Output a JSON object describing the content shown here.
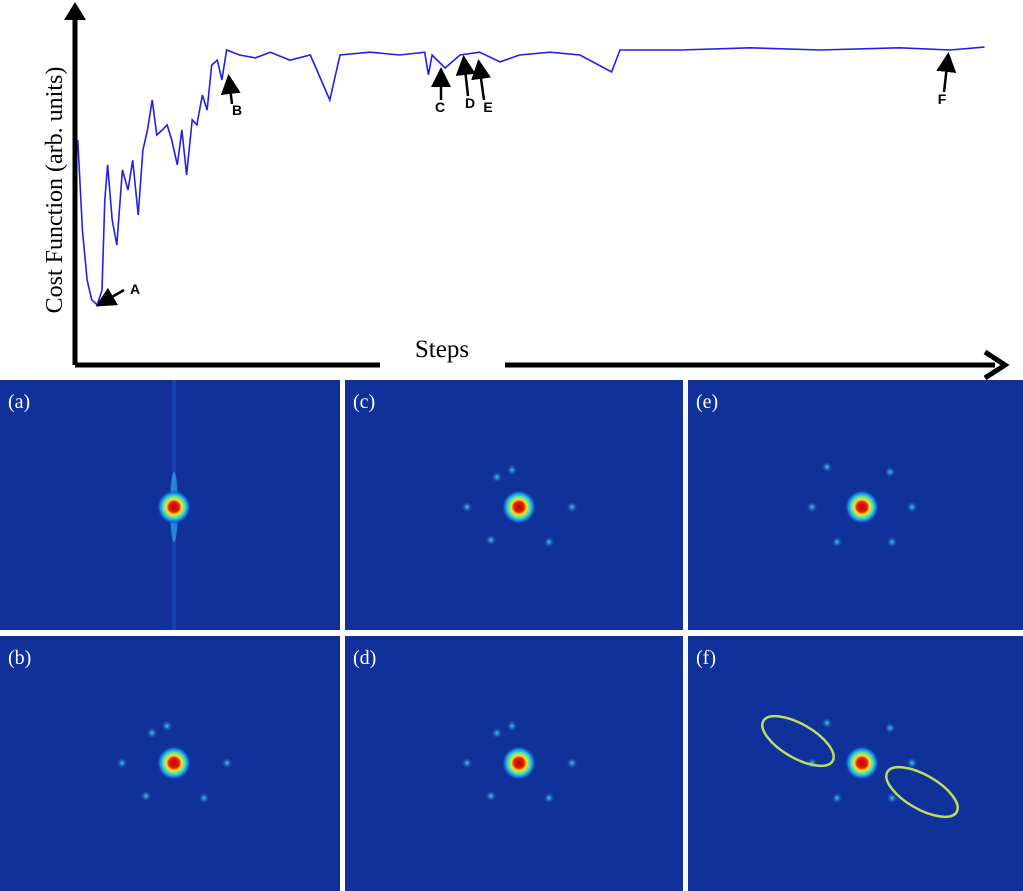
{
  "chart_data": {
    "type": "line",
    "xlabel": "Steps",
    "ylabel": "Cost Function (arb. units)",
    "xlim": [
      0,
      100
    ],
    "ylim": [
      0,
      100
    ],
    "series": [
      {
        "color": "#2020e8",
        "x": [
          0.3,
          0.8,
          1.3,
          1.8,
          2.4,
          2.9,
          3.2,
          3.5,
          4.0,
          4.5,
          5.1,
          5.7,
          6.2,
          6.8,
          7.3,
          7.8,
          8.3,
          8.8,
          9.4,
          9.9,
          10.4,
          11.0,
          11.5,
          12.0,
          12.6,
          13.1,
          13.7,
          14.2,
          14.7,
          15.3,
          15.8,
          16.3,
          17.7,
          19.4,
          21.0,
          23.1,
          25.3,
          27.4,
          28.5,
          31.7,
          34.9,
          37.6,
          38.0,
          38.4,
          39.8,
          41.4,
          43.5,
          45.7,
          47.8,
          51.1,
          54.3,
          57.7,
          58.6,
          65.1,
          72.6,
          80.1,
          88.7,
          94.1,
          97.8
        ],
        "values": [
          62.5,
          37.5,
          23.6,
          18.1,
          16.7,
          20.8,
          45.8,
          55.6,
          40.3,
          33.3,
          54.2,
          48.6,
          56.9,
          41.7,
          59.7,
          65.3,
          73.6,
          63.9,
          65.3,
          66.7,
          62.5,
          55.6,
          65.3,
          52.8,
          68.1,
          66.7,
          75,
          70.8,
          83.3,
          84.7,
          79.2,
          87.5,
          86.1,
          85.3,
          86.9,
          84.7,
          86.1,
          73.6,
          86.1,
          86.9,
          86.1,
          86.9,
          80.6,
          86.1,
          82.5,
          86.1,
          86.9,
          84.2,
          86.1,
          86.9,
          86.1,
          81.4,
          87.5,
          87.5,
          88.1,
          87.5,
          88.1,
          87.5,
          88.3
        ]
      }
    ],
    "annotations": [
      "A",
      "B",
      "C",
      "D",
      "E",
      "F"
    ]
  },
  "panels": {
    "labels": [
      "(a)",
      "(c)",
      "(e)",
      "(b)",
      "(d)",
      "(f)"
    ]
  }
}
